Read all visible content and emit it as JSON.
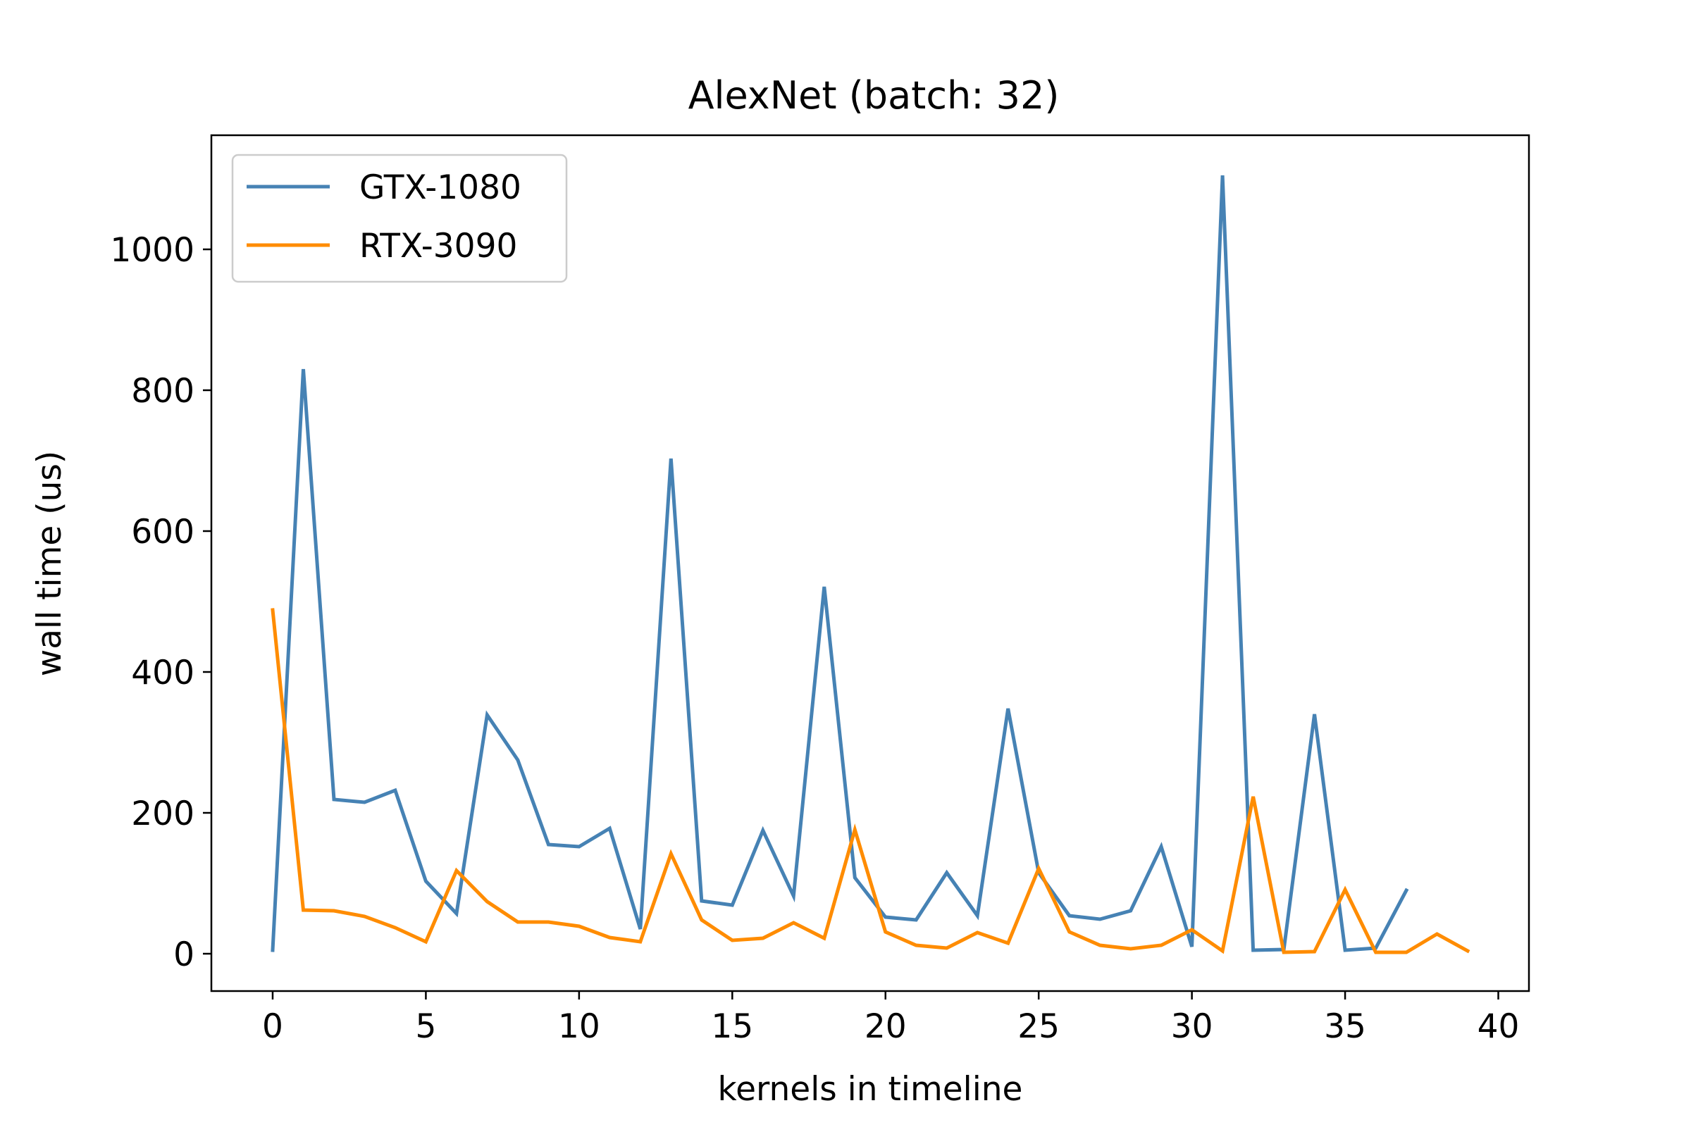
{
  "chart_data": {
    "type": "line",
    "title": "AlexNet (batch: 32)",
    "xlabel": "kernels in timeline",
    "ylabel": "wall time (us)",
    "xlim": [
      -2,
      41
    ],
    "ylim": [
      -53,
      1162
    ],
    "xticks": [
      0,
      5,
      10,
      15,
      20,
      25,
      30,
      35,
      40
    ],
    "yticks": [
      0,
      200,
      400,
      600,
      800,
      1000
    ],
    "grid": false,
    "legend": "top-left",
    "series": [
      {
        "name": "GTX-1080",
        "color": "#4682b4",
        "x": [
          0,
          1,
          2,
          3,
          4,
          5,
          6,
          7,
          8,
          9,
          10,
          11,
          12,
          13,
          14,
          15,
          16,
          17,
          18,
          19,
          20,
          21,
          22,
          23,
          24,
          25,
          26,
          27,
          28,
          29,
          30,
          31,
          32,
          33,
          34,
          35,
          36,
          37
        ],
        "values": [
          5,
          830,
          219,
          215,
          232,
          103,
          57,
          339,
          275,
          155,
          152,
          178,
          35,
          703,
          75,
          69,
          175,
          82,
          521,
          108,
          52,
          48,
          115,
          54,
          348,
          115,
          54,
          49,
          61,
          152,
          10,
          1105,
          5,
          6,
          340,
          5,
          8,
          90
        ]
      },
      {
        "name": "RTX-3090",
        "color": "#ff8c00",
        "x": [
          0,
          1,
          2,
          3,
          4,
          5,
          6,
          7,
          8,
          9,
          10,
          11,
          12,
          13,
          14,
          15,
          16,
          17,
          18,
          19,
          20,
          21,
          22,
          23,
          24,
          25,
          26,
          27,
          28,
          29,
          30,
          31,
          32,
          33,
          34,
          35,
          36,
          37,
          38,
          39
        ],
        "values": [
          488,
          62,
          61,
          53,
          37,
          17,
          118,
          74,
          45,
          45,
          39,
          23,
          17,
          142,
          48,
          19,
          22,
          44,
          22,
          176,
          31,
          12,
          8,
          30,
          15,
          121,
          31,
          12,
          7,
          12,
          34,
          4,
          223,
          2,
          3,
          91,
          2,
          2,
          28,
          4
        ]
      }
    ]
  }
}
